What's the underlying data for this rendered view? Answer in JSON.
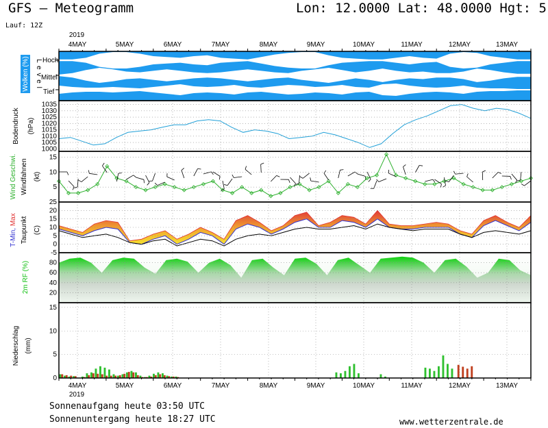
{
  "header": {
    "title": "GFS – Meteogramm",
    "coords": "Lon: 12.0000  Lat: 48.0000  Hgt: 5",
    "run": "Lauf: 12Z"
  },
  "footer": {
    "sunrise": "Sonnenaufgang heute 03:50 UTC",
    "sunset": "Sonnenuntergang heute 18:27 UTC",
    "website": "www.wetterzentrale.de"
  },
  "colors": {
    "cloud_sky": "#1e9bef",
    "cloud": "#ffffff",
    "pressure": "#20a0d8",
    "wind": "#2db02d",
    "tmax": "#e03030",
    "tmin": "#3030d0",
    "dew": "#000000",
    "humidity": "#10c010",
    "precip_rain": "#30c030",
    "precip_conv": "#c04020"
  },
  "chart_data": [
    {
      "type": "timeline",
      "year": "2019",
      "dates": [
        "4MAY",
        "5MAY",
        "6MAY",
        "7MAY",
        "8MAY",
        "9MAY",
        "10MAY",
        "11MAY",
        "12MAY",
        "13MAY"
      ]
    },
    {
      "type": "heatmap",
      "ylabel": "Wolken (%)",
      "ylabel2": "L e v e l",
      "levels": [
        "Hoch",
        "Mittel",
        "Tief"
      ],
      "timesteps_h": 168,
      "hoch": [
        10,
        10,
        30,
        80,
        100,
        100,
        80,
        50,
        40,
        30,
        50,
        60,
        30,
        20,
        10,
        40,
        70,
        90,
        100,
        100,
        60,
        30,
        20,
        10,
        10,
        30,
        50,
        30,
        20,
        80,
        100,
        90,
        50,
        30,
        10,
        10
      ],
      "mittel": [
        10,
        30,
        70,
        100,
        80,
        50,
        40,
        60,
        80,
        60,
        40,
        30,
        40,
        60,
        80,
        60,
        40,
        30,
        60,
        80,
        100,
        70,
        40,
        60,
        90,
        60,
        40,
        50,
        30,
        30,
        50,
        90,
        70,
        40,
        20,
        20
      ],
      "tief": [
        60,
        40,
        30,
        30,
        40,
        30,
        20,
        40,
        60,
        80,
        50,
        40,
        50,
        70,
        40,
        30,
        50,
        70,
        60,
        40,
        50,
        70,
        40,
        30,
        80,
        90,
        60,
        40,
        30,
        40,
        60,
        30,
        20,
        20,
        10,
        10
      ]
    },
    {
      "type": "line",
      "ylabel": "Bodendruck",
      "unit": "(hPa)",
      "ylim": [
        998,
        1038
      ],
      "yticks": [
        1000,
        1005,
        1010,
        1015,
        1020,
        1025,
        1030,
        1035
      ],
      "values": [
        1008,
        1009,
        1006,
        1003,
        1004,
        1009,
        1013,
        1014,
        1015,
        1017,
        1019,
        1019,
        1022,
        1023,
        1022,
        1017,
        1013,
        1015,
        1014,
        1012,
        1008,
        1009,
        1010,
        1013,
        1011,
        1008,
        1005,
        1001,
        1004,
        1012,
        1019,
        1023,
        1026,
        1030,
        1034,
        1035,
        1032,
        1030,
        1032,
        1031,
        1028,
        1024
      ]
    },
    {
      "type": "line",
      "ylabel": "Wind Geschwi.",
      "ylabel2": "Windfahnen",
      "unit": "(kt)",
      "ylim": [
        0,
        17
      ],
      "yticks": [
        5,
        10,
        15
      ],
      "values": [
        7,
        3,
        3,
        4,
        6,
        12,
        8,
        7,
        5,
        4,
        5,
        6,
        5,
        4,
        5,
        6,
        7,
        4,
        3,
        5,
        3,
        4,
        2,
        3,
        5,
        6,
        4,
        5,
        7,
        3,
        6,
        5,
        8,
        9,
        16,
        9,
        8,
        7,
        6,
        6,
        7,
        8,
        6,
        5,
        4,
        4,
        5,
        6,
        7,
        8
      ]
    },
    {
      "type": "area",
      "ylabel": "T-Min, Max",
      "ylabel2": "Taupunkt",
      "unit": "(C)",
      "ylim": [
        -5,
        25
      ],
      "yticks": [
        -5,
        0,
        5,
        10,
        15,
        20,
        25
      ],
      "tmax": [
        11,
        9,
        7,
        12,
        14,
        13,
        2,
        3,
        6,
        8,
        3,
        6,
        10,
        7,
        3,
        14,
        17,
        13,
        8,
        11,
        17,
        19,
        11,
        13,
        17,
        16,
        12,
        20,
        12,
        11,
        11,
        12,
        13,
        12,
        8,
        6,
        14,
        17,
        13,
        10,
        17
      ],
      "tmin": [
        9,
        7,
        5,
        8,
        10,
        9,
        1,
        0,
        3,
        5,
        0,
        3,
        7,
        5,
        0,
        9,
        12,
        10,
        6,
        9,
        13,
        15,
        10,
        10,
        14,
        13,
        10,
        15,
        10,
        9,
        9,
        10,
        10,
        10,
        6,
        4,
        11,
        14,
        11,
        8,
        13
      ],
      "dew": [
        8,
        6,
        4,
        5,
        6,
        4,
        1,
        0,
        2,
        3,
        -1,
        1,
        3,
        2,
        -1,
        3,
        5,
        6,
        5,
        7,
        9,
        10,
        9,
        9,
        10,
        11,
        9,
        12,
        10,
        9,
        8,
        9,
        9,
        9,
        6,
        4,
        7,
        8,
        7,
        6,
        8
      ]
    },
    {
      "type": "area",
      "ylabel": "2m RF (%)",
      "ylim": [
        0,
        100
      ],
      "yticks": [
        20,
        40,
        60,
        80
      ],
      "values": [
        80,
        88,
        90,
        80,
        60,
        85,
        90,
        88,
        70,
        58,
        85,
        88,
        82,
        60,
        80,
        88,
        75,
        50,
        85,
        88,
        70,
        55,
        88,
        90,
        78,
        55,
        85,
        90,
        75,
        60,
        88,
        90,
        92,
        90,
        80,
        60,
        85,
        88,
        72,
        50,
        60,
        88,
        85,
        65,
        55
      ]
    },
    {
      "type": "bar",
      "ylabel": "Niederschlag",
      "unit": "(mm)",
      "ylim": [
        0,
        16
      ],
      "yticks": [
        0,
        5,
        10,
        15
      ],
      "rain": [
        0.8,
        0.5,
        0.3,
        0.4,
        0,
        0.3,
        1.0,
        1.2,
        2.0,
        2.5,
        2.2,
        1.8,
        0.8,
        0.5,
        0.8,
        1.2,
        1.5,
        1.2,
        0.5,
        0.2,
        0.5,
        0.9,
        1.2,
        1.0,
        0.5,
        0.3,
        0.3,
        0,
        0,
        0,
        0,
        0,
        0,
        0,
        0,
        0,
        0,
        0,
        0,
        0,
        0,
        0,
        0,
        0,
        0,
        0,
        0,
        0,
        0,
        0,
        0,
        0,
        0,
        0,
        0,
        0,
        0,
        0,
        0,
        0,
        0,
        0,
        1.2,
        1.0,
        1.5,
        2.5,
        3.0,
        1.0,
        0,
        0,
        0,
        0,
        0.8,
        0.3,
        0,
        0,
        0,
        0,
        0,
        0,
        0,
        0,
        2.2,
        2.0,
        1.5,
        2.5,
        4.8,
        3.0,
        2.0,
        0,
        0,
        0,
        0,
        0,
        0,
        0,
        0,
        0,
        0,
        0,
        0,
        0,
        0,
        0,
        0,
        0
      ],
      "conv": [
        0.8,
        0.6,
        0.5,
        0.4,
        0,
        0.2,
        0.6,
        1.0,
        0.9,
        0.8,
        0.5,
        0.5,
        0.5,
        0.6,
        0.9,
        1.3,
        1.2,
        0.6,
        0.2,
        0.2,
        0.3,
        0.6,
        0.8,
        0.6,
        0.4,
        0.3,
        0.2,
        0,
        0,
        0,
        0,
        0,
        0,
        0,
        0,
        0,
        0,
        0,
        0,
        0,
        0,
        0,
        0,
        0,
        0,
        0,
        0,
        0,
        0,
        0,
        0,
        0,
        0,
        0,
        0,
        0,
        0,
        0,
        0,
        0,
        0,
        0,
        0,
        0,
        0,
        0,
        0,
        0,
        0,
        0,
        0,
        0,
        0,
        0,
        0,
        0,
        0,
        0,
        0,
        0,
        0,
        0,
        0,
        0,
        0,
        0,
        0,
        0,
        0,
        2.8,
        2.4,
        2.0,
        2.5,
        0,
        0,
        0,
        0,
        0,
        0,
        0,
        0,
        0,
        0,
        0,
        0,
        0,
        0,
        0
      ]
    }
  ]
}
